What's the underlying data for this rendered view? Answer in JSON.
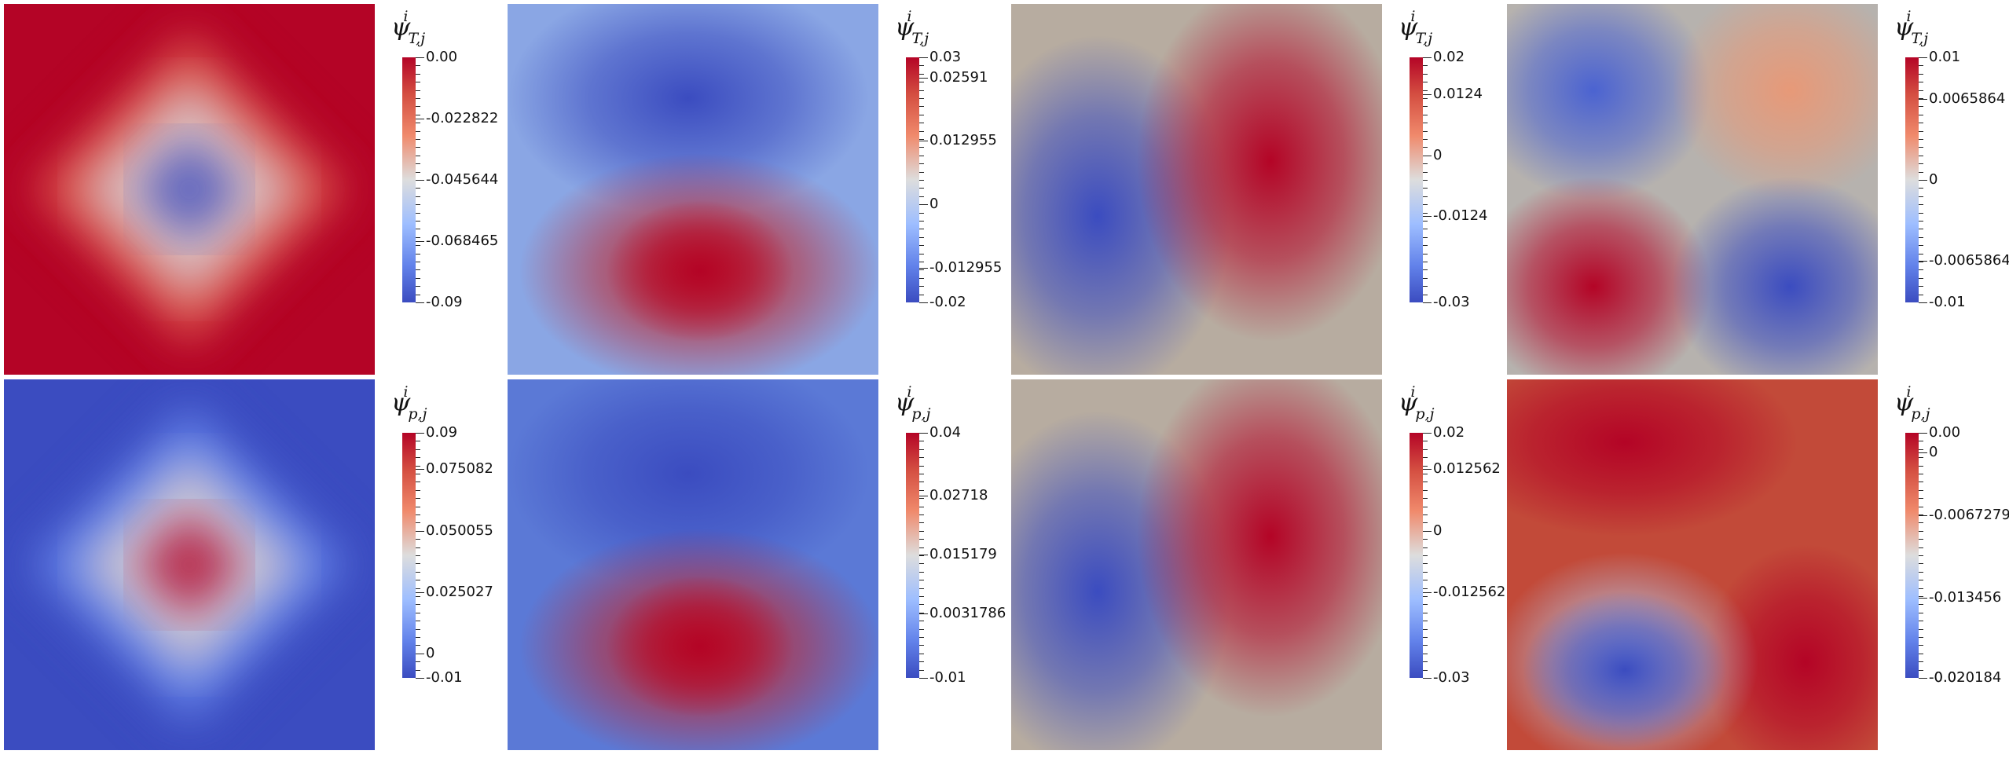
{
  "chart_data": [
    {
      "type": "heatmap",
      "pattern": "diamond-min",
      "label_var": "T",
      "ticks": [
        "0.00",
        "-0.022822",
        "-0.045644",
        "-0.068465",
        "-0.09"
      ],
      "tick_pos": [
        0,
        0.25,
        0.5,
        0.75,
        1
      ]
    },
    {
      "type": "heatmap",
      "pattern": "dipole-vertical",
      "label_var": "T",
      "ticks": [
        "0.03",
        "0.02591",
        "0.012955",
        "0",
        "-0.012955",
        "-0.02"
      ],
      "tick_pos": [
        0,
        0.082,
        0.341,
        0.6,
        0.859,
        1
      ]
    },
    {
      "type": "heatmap",
      "pattern": "dipole-horizontal",
      "label_var": "T",
      "ticks": [
        "0.02",
        "0.0124",
        "0",
        "-0.0124",
        "-0.03"
      ],
      "tick_pos": [
        0,
        0.152,
        0.4,
        0.648,
        1
      ]
    },
    {
      "type": "heatmap",
      "pattern": "quadrupole",
      "label_var": "T",
      "ticks": [
        "0.01",
        "0.0065864",
        "0",
        "-0.0065864",
        "-0.01"
      ],
      "tick_pos": [
        0,
        0.171,
        0.5,
        0.829,
        1
      ]
    },
    {
      "type": "heatmap",
      "pattern": "diamond-max",
      "label_var": "p",
      "ticks": [
        "0.09",
        "0.075082",
        "0.050055",
        "0.025027",
        "0",
        "-0.01"
      ],
      "tick_pos": [
        0,
        0.149,
        0.4,
        0.65,
        0.9,
        1
      ]
    },
    {
      "type": "heatmap",
      "pattern": "dipole-vertical-sharp",
      "label_var": "p",
      "ticks": [
        "0.04",
        "0.02718",
        "0.015179",
        "0.0031786",
        "-0.01"
      ],
      "tick_pos": [
        0,
        0.256,
        0.496,
        0.736,
        1
      ]
    },
    {
      "type": "heatmap",
      "pattern": "dipole-horizontal",
      "label_var": "p",
      "ticks": [
        "0.02",
        "0.012562",
        "0",
        "-0.012562",
        "-0.03"
      ],
      "tick_pos": [
        0,
        0.149,
        0.4,
        0.651,
        1
      ]
    },
    {
      "type": "heatmap",
      "pattern": "mostly-max-with-min",
      "label_var": "p",
      "ticks": [
        "0.00",
        "0",
        "-0.0067279",
        "-0.013456",
        "-0.020184",
        "-0.02"
      ],
      "tick_pos": [
        0,
        0.08,
        0.336,
        0.673,
        1,
        1
      ]
    }
  ],
  "colormap": {
    "low": "#3b4cc0",
    "mid": "#dddddd",
    "high": "#b40426"
  }
}
